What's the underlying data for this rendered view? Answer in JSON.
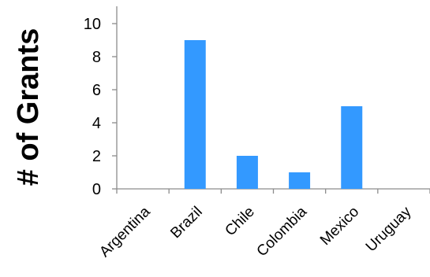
{
  "chart_data": {
    "type": "bar",
    "title": "",
    "xlabel": "",
    "ylabel": "# of Grants",
    "categories": [
      "Argentina",
      "Brazil",
      "Chile",
      "Colombia",
      "Mexico",
      "Uruguay"
    ],
    "values": [
      0,
      9,
      2,
      1,
      5,
      0
    ],
    "ylim": [
      0,
      10
    ],
    "yticks": [
      0,
      2,
      4,
      6,
      8,
      10
    ],
    "bar_color": "#3399ff",
    "grid": false,
    "legend": "none"
  }
}
